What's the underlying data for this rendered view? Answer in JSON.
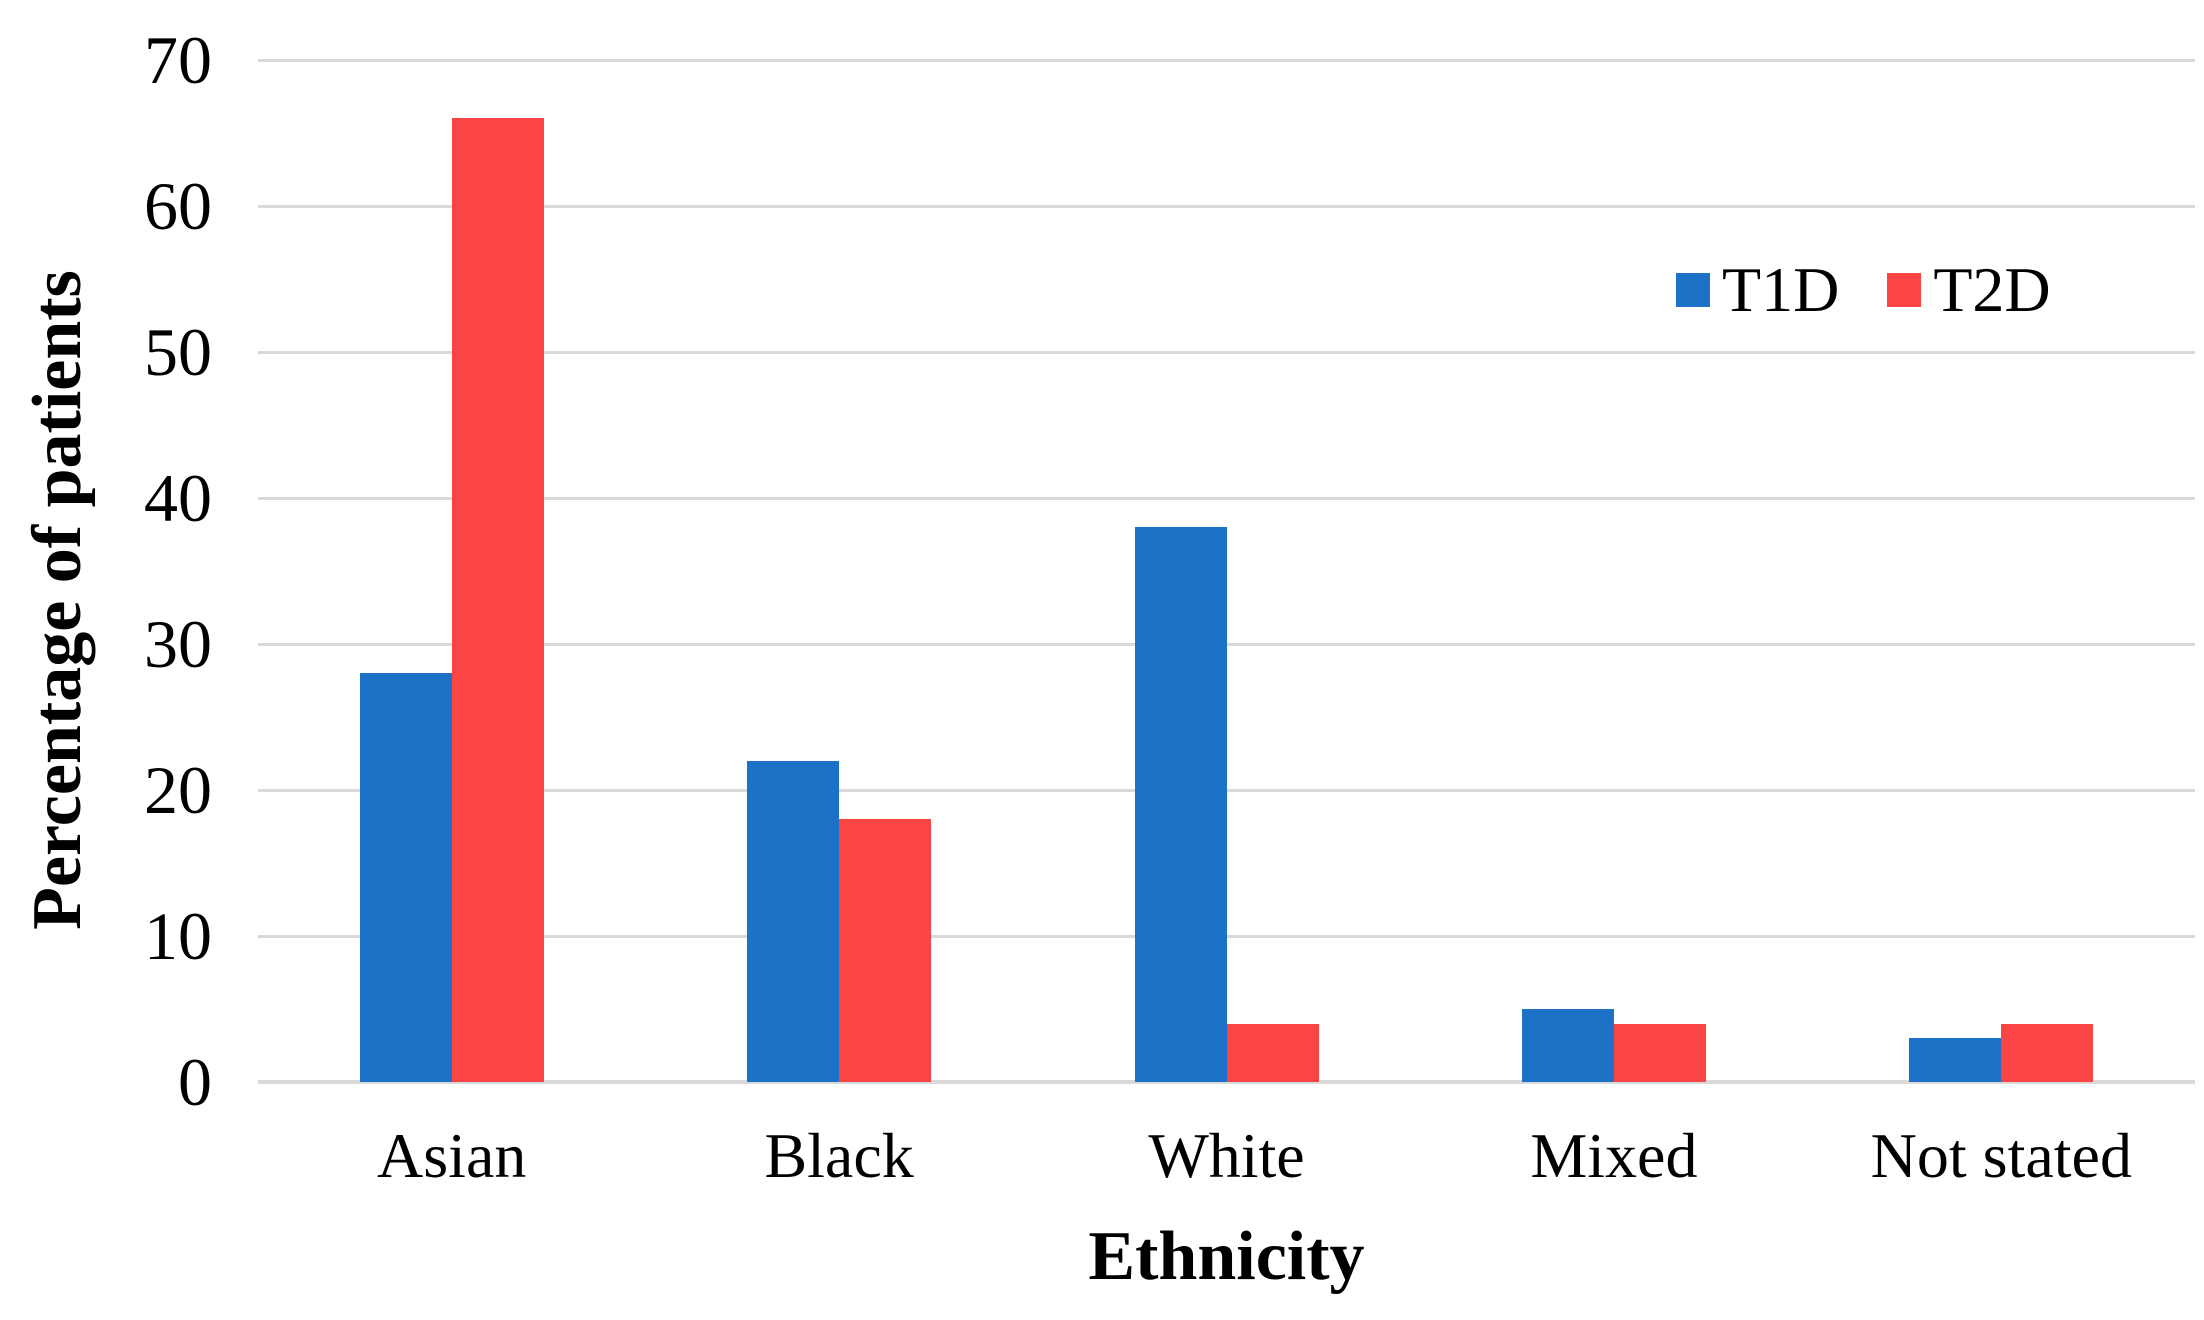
{
  "chart_data": {
    "type": "bar",
    "title": "",
    "xlabel": "Ethnicity",
    "ylabel": "Percentage of patients",
    "categories": [
      "Asian",
      "Black",
      "White",
      "Mixed",
      "Not stated"
    ],
    "series": [
      {
        "name": "T1D",
        "color": "#1B72C7",
        "values": [
          28,
          22,
          38,
          5,
          3
        ]
      },
      {
        "name": "T2D",
        "color": "#FB4545",
        "values": [
          66,
          18,
          4,
          4,
          4
        ]
      }
    ],
    "ylim": [
      0,
      70
    ],
    "y_ticks": [
      70,
      60,
      50,
      40,
      30,
      20,
      10,
      0
    ],
    "grid": "horizontal",
    "gridline_color": "#D9D9D9",
    "axis_line_color": "#D9D9D9",
    "legend_position": "top-right",
    "background": "#FFFFFF",
    "text_color": "#000000"
  }
}
